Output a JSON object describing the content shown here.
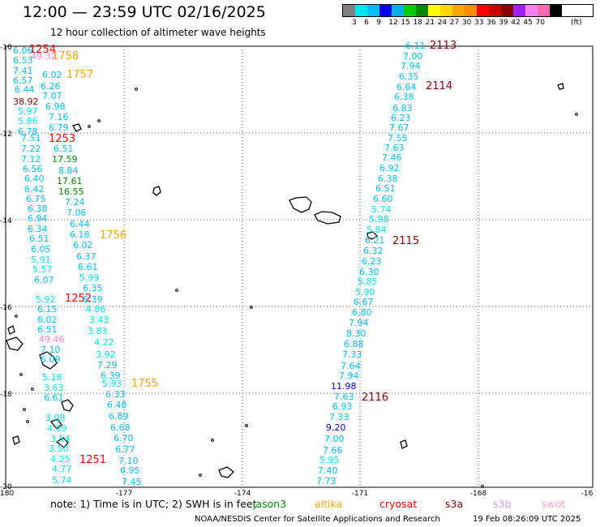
{
  "header": {
    "title": "12:00 — 23:59 UTC 02/16/2025",
    "subtitle": "12 hour collection of altimeter wave heights"
  },
  "legend": {
    "colors": [
      "#808080",
      "#00e5ee",
      "#00bfff",
      "#0000ee",
      "#00b2ee",
      "#00cd00",
      "#008b00",
      "#ffff00",
      "#ffd700",
      "#ffa500",
      "#ff8c00",
      "#ff0000",
      "#cd0000",
      "#8b0000",
      "#a020f0",
      "#ee82ee",
      "#ff69b4",
      "#000000"
    ],
    "labels": [
      "3",
      "6",
      "9",
      "12",
      "15",
      "18",
      "21",
      "24",
      "27",
      "30",
      "33",
      "36",
      "39",
      "42",
      "45",
      "70",
      "(ft)"
    ]
  },
  "axes": {
    "x_ticks": [
      "-180",
      "-177",
      "-174",
      "-171",
      "-168",
      "-16"
    ],
    "y_ticks": [
      "-10",
      "-12",
      "-14",
      "-16",
      "-18",
      "-20"
    ]
  },
  "map_labels": {
    "passes": [
      {
        "text": "1254",
        "color": "#ff0000"
      },
      {
        "text": "1758",
        "color": "#ffa500"
      },
      {
        "text": "1757",
        "color": "#ffa500"
      },
      {
        "text": "1253",
        "color": "#ff0000"
      },
      {
        "text": "1756",
        "color": "#ffa500"
      },
      {
        "text": "1252",
        "color": "#ff0000"
      },
      {
        "text": "1755",
        "color": "#ffa500"
      },
      {
        "text": "1251",
        "color": "#ff0000"
      },
      {
        "text": "2113",
        "color": "#8b0000"
      },
      {
        "text": "2114",
        "color": "#8b0000"
      },
      {
        "text": "2115",
        "color": "#8b0000"
      },
      {
        "text": "2116",
        "color": "#8b0000"
      }
    ],
    "values": [
      {
        "text": "6.06",
        "color": "#00bfff"
      },
      {
        "text": "6.53",
        "color": "#00bfff"
      },
      {
        "text": "49.32",
        "color": "#ee82ee"
      },
      {
        "text": "7.41",
        "color": "#00bfff"
      },
      {
        "text": "6.57",
        "color": "#00bfff"
      },
      {
        "text": "6.02",
        "color": "#00bfff"
      },
      {
        "text": "6.44",
        "color": "#00bfff"
      },
      {
        "text": "6.26",
        "color": "#00bfff"
      },
      {
        "text": "7.07",
        "color": "#00bfff"
      },
      {
        "text": "38.92",
        "color": "#8b0000"
      },
      {
        "text": "6.98",
        "color": "#00bfff"
      },
      {
        "text": "5.97",
        "color": "#00e5ee"
      },
      {
        "text": "7.16",
        "color": "#00bfff"
      },
      {
        "text": "5.86",
        "color": "#00e5ee"
      },
      {
        "text": "6.79",
        "color": "#00bfff"
      },
      {
        "text": "6.78",
        "color": "#00bfff"
      },
      {
        "text": "7.51",
        "color": "#00bfff"
      },
      {
        "text": "7.22",
        "color": "#00bfff"
      },
      {
        "text": "6.51",
        "color": "#00bfff"
      },
      {
        "text": "7.12",
        "color": "#00bfff"
      },
      {
        "text": "17.59",
        "color": "#008b00"
      },
      {
        "text": "6.56",
        "color": "#00bfff"
      },
      {
        "text": "8.84",
        "color": "#00bfff"
      },
      {
        "text": "6.40",
        "color": "#00bfff"
      },
      {
        "text": "17.61",
        "color": "#008b00"
      },
      {
        "text": "6.42",
        "color": "#00bfff"
      },
      {
        "text": "16.55",
        "color": "#008b00"
      },
      {
        "text": "6.75",
        "color": "#00bfff"
      },
      {
        "text": "7.24",
        "color": "#00bfff"
      },
      {
        "text": "6.38",
        "color": "#00bfff"
      },
      {
        "text": "7.06",
        "color": "#00bfff"
      },
      {
        "text": "6.94",
        "color": "#00bfff"
      },
      {
        "text": "6.44",
        "color": "#00bfff"
      },
      {
        "text": "6.34",
        "color": "#00bfff"
      },
      {
        "text": "6.18",
        "color": "#00bfff"
      },
      {
        "text": "6.51",
        "color": "#00bfff"
      },
      {
        "text": "6.02",
        "color": "#00bfff"
      },
      {
        "text": "6.05",
        "color": "#00bfff"
      },
      {
        "text": "6.37",
        "color": "#00bfff"
      },
      {
        "text": "5.91",
        "color": "#00e5ee"
      },
      {
        "text": "6.61",
        "color": "#00bfff"
      },
      {
        "text": "5.57",
        "color": "#00e5ee"
      },
      {
        "text": "5.99",
        "color": "#00e5ee"
      },
      {
        "text": "6.07",
        "color": "#00bfff"
      },
      {
        "text": "6.35",
        "color": "#00bfff"
      },
      {
        "text": "5.92",
        "color": "#00e5ee"
      },
      {
        "text": "6.39",
        "color": "#00bfff"
      },
      {
        "text": "6.15",
        "color": "#00bfff"
      },
      {
        "text": "4.86",
        "color": "#00e5ee"
      },
      {
        "text": "6.02",
        "color": "#00bfff"
      },
      {
        "text": "3.43",
        "color": "#00e5ee"
      },
      {
        "text": "6.51",
        "color": "#00bfff"
      },
      {
        "text": "3.83",
        "color": "#00e5ee"
      },
      {
        "text": "49.46",
        "color": "#ee82ee"
      },
      {
        "text": "4.22",
        "color": "#00e5ee"
      },
      {
        "text": "7.10",
        "color": "#00bfff"
      },
      {
        "text": "3.92",
        "color": "#00e5ee"
      },
      {
        "text": "6.09",
        "color": "#00bfff"
      },
      {
        "text": "7.29",
        "color": "#00bfff"
      },
      {
        "text": "5.18",
        "color": "#00e5ee"
      },
      {
        "text": "6.39",
        "color": "#00bfff"
      },
      {
        "text": "3.63",
        "color": "#00e5ee"
      },
      {
        "text": "5.93",
        "color": "#00e5ee"
      },
      {
        "text": "6.61",
        "color": "#00bfff"
      },
      {
        "text": "6.33",
        "color": "#00bfff"
      },
      {
        "text": "6.48",
        "color": "#00bfff"
      },
      {
        "text": "3.08",
        "color": "#00e5ee"
      },
      {
        "text": "6.89",
        "color": "#00bfff"
      },
      {
        "text": "4.09",
        "color": "#00e5ee"
      },
      {
        "text": "6.68",
        "color": "#00bfff"
      },
      {
        "text": "3.54",
        "color": "#00e5ee"
      },
      {
        "text": "6.70",
        "color": "#00bfff"
      },
      {
        "text": "3.50",
        "color": "#00e5ee"
      },
      {
        "text": "6.77",
        "color": "#00bfff"
      },
      {
        "text": "4.25",
        "color": "#00e5ee"
      },
      {
        "text": "7.10",
        "color": "#00bfff"
      },
      {
        "text": "4.77",
        "color": "#00e5ee"
      },
      {
        "text": "6.95",
        "color": "#00bfff"
      },
      {
        "text": "5.74",
        "color": "#00e5ee"
      },
      {
        "text": "7.45",
        "color": "#00bfff"
      },
      {
        "text": "6.11",
        "color": "#00bfff"
      },
      {
        "text": "7.00",
        "color": "#00bfff"
      },
      {
        "text": "7.94",
        "color": "#00bfff"
      },
      {
        "text": "6.35",
        "color": "#00bfff"
      },
      {
        "text": "6.64",
        "color": "#00bfff"
      },
      {
        "text": "6.38",
        "color": "#00bfff"
      },
      {
        "text": "6.83",
        "color": "#00bfff"
      },
      {
        "text": "6.23",
        "color": "#00bfff"
      },
      {
        "text": "7.67",
        "color": "#00bfff"
      },
      {
        "text": "7.55",
        "color": "#00bfff"
      },
      {
        "text": "7.63",
        "color": "#00bfff"
      },
      {
        "text": "7.46",
        "color": "#00bfff"
      },
      {
        "text": "6.92",
        "color": "#00bfff"
      },
      {
        "text": "6.38",
        "color": "#00bfff"
      },
      {
        "text": "6.51",
        "color": "#00bfff"
      },
      {
        "text": "6.60",
        "color": "#00bfff"
      },
      {
        "text": "5.74",
        "color": "#00e5ee"
      },
      {
        "text": "5.98",
        "color": "#00e5ee"
      },
      {
        "text": "5.84",
        "color": "#00e5ee"
      },
      {
        "text": "6.21",
        "color": "#00bfff"
      },
      {
        "text": "6.32",
        "color": "#00bfff"
      },
      {
        "text": "6.23",
        "color": "#00bfff"
      },
      {
        "text": "6.30",
        "color": "#00bfff"
      },
      {
        "text": "5.85",
        "color": "#00e5ee"
      },
      {
        "text": "5.90",
        "color": "#00e5ee"
      },
      {
        "text": "6.67",
        "color": "#00bfff"
      },
      {
        "text": "6.80",
        "color": "#00bfff"
      },
      {
        "text": "7.94",
        "color": "#00bfff"
      },
      {
        "text": "8.30",
        "color": "#00bfff"
      },
      {
        "text": "6.88",
        "color": "#00bfff"
      },
      {
        "text": "7.33",
        "color": "#00bfff"
      },
      {
        "text": "7.64",
        "color": "#00bfff"
      },
      {
        "text": "7.94",
        "color": "#00bfff"
      },
      {
        "text": "11.98",
        "color": "#0000ee"
      },
      {
        "text": "7.63",
        "color": "#00bfff"
      },
      {
        "text": "6.93",
        "color": "#00bfff"
      },
      {
        "text": "7.33",
        "color": "#00bfff"
      },
      {
        "text": "9.20",
        "color": "#0000ee"
      },
      {
        "text": "7.00",
        "color": "#00bfff"
      },
      {
        "text": "7.66",
        "color": "#00bfff"
      },
      {
        "text": "5.95",
        "color": "#00e5ee"
      },
      {
        "text": "7.40",
        "color": "#00bfff"
      },
      {
        "text": "7.73",
        "color": "#00bfff"
      }
    ]
  },
  "footer": {
    "note_prefix": "note:  1) Time is in UTC;  2) SWH is in feet",
    "satellites": [
      {
        "name": "jason3",
        "color": "#008b00"
      },
      {
        "name": "altika",
        "color": "#ffa500"
      },
      {
        "name": "cryosat",
        "color": "#ff0000"
      },
      {
        "name": "s3a",
        "color": "#8b0000"
      },
      {
        "name": "s3b",
        "color": "#c8a2e8"
      },
      {
        "name": "swot",
        "color": "#ff9fd0"
      }
    ],
    "credit": "NOAA/NESDIS Center for Satellite Applications and Research",
    "generated": "19 Feb 08:26:09 UTC 2025"
  }
}
